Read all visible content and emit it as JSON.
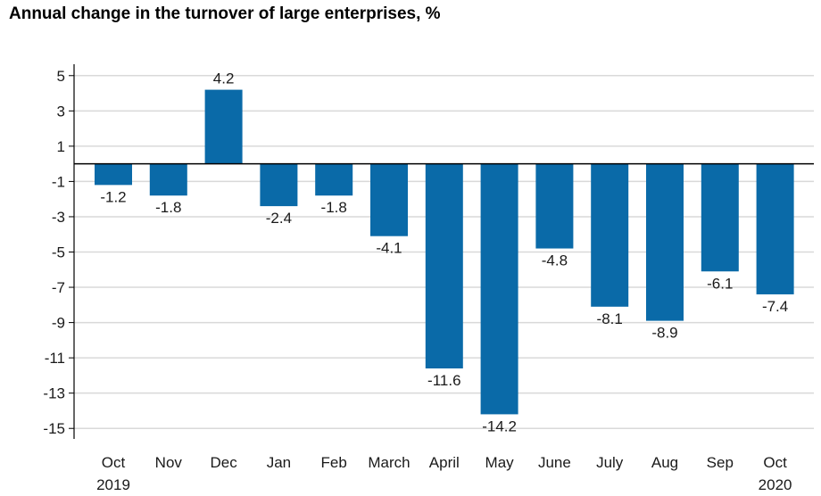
{
  "chart_data": {
    "type": "bar",
    "title": "Annual change in the turnover of large enterprises, %",
    "categories": [
      {
        "label": "Oct",
        "sub": "2019"
      },
      {
        "label": "Nov",
        "sub": ""
      },
      {
        "label": "Dec",
        "sub": ""
      },
      {
        "label": "Jan",
        "sub": ""
      },
      {
        "label": "Feb",
        "sub": ""
      },
      {
        "label": "March",
        "sub": ""
      },
      {
        "label": "April",
        "sub": ""
      },
      {
        "label": "May",
        "sub": ""
      },
      {
        "label": "June",
        "sub": ""
      },
      {
        "label": "July",
        "sub": ""
      },
      {
        "label": "Aug",
        "sub": ""
      },
      {
        "label": "Sep",
        "sub": ""
      },
      {
        "label": "Oct",
        "sub": "2020"
      }
    ],
    "values": [
      -1.2,
      -1.8,
      4.2,
      -2.4,
      -1.8,
      -4.1,
      -11.6,
      -14.2,
      -4.8,
      -8.1,
      -8.9,
      -6.1,
      -7.4
    ],
    "data_labels": [
      "-1.2",
      "-1.8",
      "4.2",
      "-2.4",
      "-1.8",
      "-4.1",
      "-11.6",
      "-14.2",
      "-4.8",
      "-8.1",
      "-8.9",
      "-6.1",
      "-7.4"
    ],
    "yticks": [
      "5",
      "3",
      "1",
      "-1",
      "-3",
      "-5",
      "-7",
      "-9",
      "-11",
      "-13",
      "-15"
    ],
    "ylim": [
      -16,
      6
    ],
    "xlabel": "",
    "ylabel": "",
    "grid": true,
    "legend": "none",
    "bar_color": "#0a6aa8",
    "grid_color": "#d9d9d9",
    "axis_color": "#000000"
  }
}
